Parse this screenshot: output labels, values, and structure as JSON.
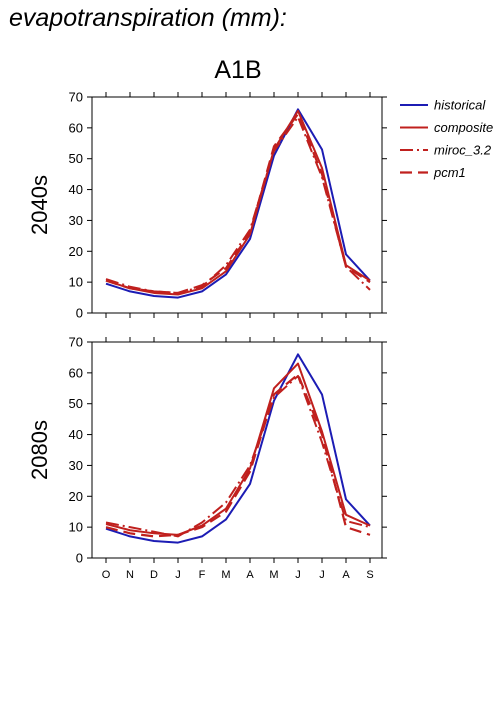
{
  "header": {
    "title": "evapotranspiration (mm):",
    "scenario": "A1B"
  },
  "colors": {
    "historical": "#1c1cb4",
    "projection": "#c0201e",
    "axis": "#000000"
  },
  "chart_data": {
    "type": "line",
    "title": "A1B",
    "x": [
      "O",
      "N",
      "D",
      "J",
      "F",
      "M",
      "A",
      "M",
      "J",
      "J",
      "A",
      "S"
    ],
    "ylim": [
      0,
      70
    ],
    "yticks": [
      0,
      10,
      20,
      30,
      40,
      50,
      60,
      70
    ],
    "grid": false,
    "legend_position": "right",
    "legend": [
      {
        "name": "historical",
        "style": "solid",
        "color": "#1c1cb4"
      },
      {
        "name": "composite",
        "style": "solid",
        "color": "#c0201e"
      },
      {
        "name": "miroc_3.2",
        "style": "dashdot",
        "color": "#c0201e"
      },
      {
        "name": "pcm1",
        "style": "dashed",
        "color": "#c0201e"
      }
    ],
    "panels": [
      {
        "label": "2040s",
        "series": [
          {
            "name": "historical",
            "values": [
              9.5,
              7,
              5.5,
              5,
              7,
              12.5,
              24,
              51,
              66,
              53,
              19,
              10.5
            ]
          },
          {
            "name": "composite",
            "values": [
              10.5,
              8,
              6.5,
              6,
              8,
              13.5,
              25.5,
              53,
              65.5,
              47,
              15.5,
              10.5
            ]
          },
          {
            "name": "miroc_3.2",
            "values": [
              11,
              8.5,
              7,
              6.5,
              8.5,
              15.5,
              27,
              52.5,
              63.5,
              44,
              15,
              7.5
            ]
          },
          {
            "name": "pcm1",
            "values": [
              10.5,
              8,
              7,
              6.5,
              9,
              14.5,
              26,
              54,
              64.5,
              45,
              15,
              10
            ]
          }
        ]
      },
      {
        "label": "2080s",
        "series": [
          {
            "name": "historical",
            "values": [
              9.5,
              7,
              5.5,
              5,
              7,
              12.5,
              24,
              51,
              66,
              53,
              19,
              10.5
            ]
          },
          {
            "name": "composite",
            "values": [
              11,
              9,
              8,
              7.5,
              10.5,
              16,
              29,
              55,
              63,
              41,
              14,
              10.5
            ]
          },
          {
            "name": "miroc_3.2",
            "values": [
              11.5,
              10,
              8.5,
              7,
              11.5,
              18,
              30,
              52,
              59,
              37.5,
              12,
              10
            ]
          },
          {
            "name": "pcm1",
            "values": [
              10,
              8,
              7,
              7.5,
              10,
              15,
              28,
              53,
              59.5,
              40,
              10,
              7.5
            ]
          }
        ]
      }
    ]
  }
}
